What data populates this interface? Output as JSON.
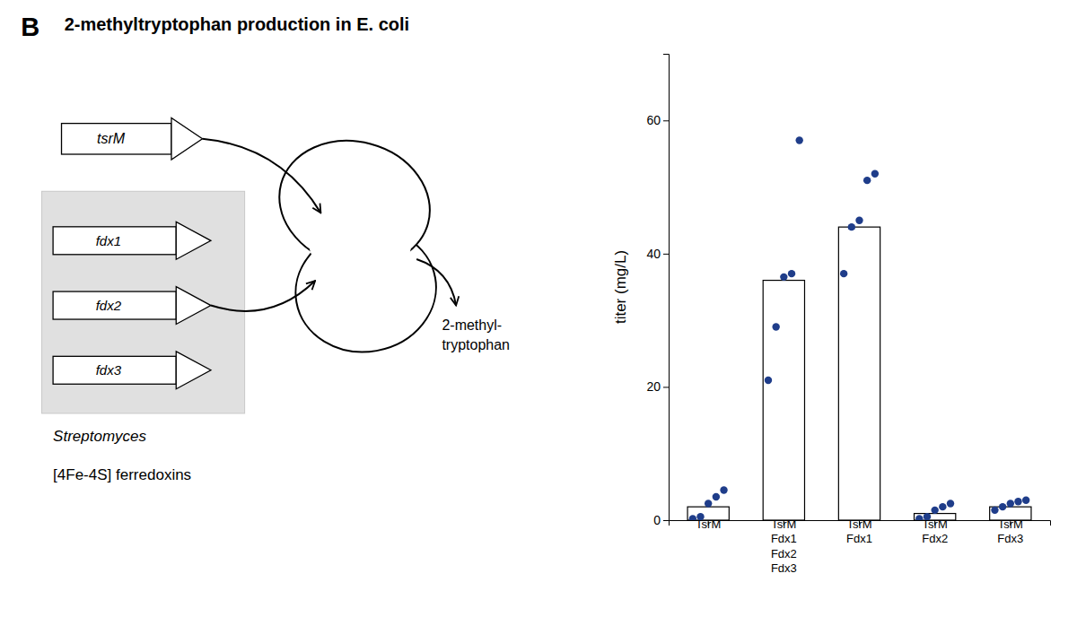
{
  "chart_data": {
    "type": "bar",
    "title": "2-methyltryptophan production in E. coli",
    "ylabel": "titer (mg/L)",
    "categories": [
      "TsrM",
      "TsrM\nFdx1\nFdx2\nFdx3",
      "TsrM\nFdx1",
      "TsrM\nFdx2",
      "TsrM\nFdx3"
    ],
    "series": [
      {
        "type": "bar",
        "color": "#ffffff",
        "values": [
          2,
          36,
          44,
          1,
          2
        ]
      },
      {
        "type": "scatter",
        "color": "#1f3d8a",
        "values": [
          [
            0.2,
            0.5,
            2.5,
            3.5,
            4.5
          ],
          [
            21,
            29,
            36.5,
            37,
            57
          ],
          [
            37,
            44,
            45,
            51,
            52
          ],
          [
            0.2,
            0.5,
            1.5,
            2.0,
            2.5
          ],
          [
            1.5,
            2.0,
            2.5,
            2.8,
            3.0
          ]
        ]
      }
    ],
    "ylim": [
      0,
      70
    ],
    "yticks": [
      0,
      20,
      40,
      60
    ],
    "grid": false,
    "annotations": [
      "B",
      "tsrM",
      "fdx1",
      "fdx2",
      "fdx3",
      "2-methyl-\ntryptophan",
      "Streptomyces",
      "[4Fe-4S] ferredoxins"
    ]
  }
}
